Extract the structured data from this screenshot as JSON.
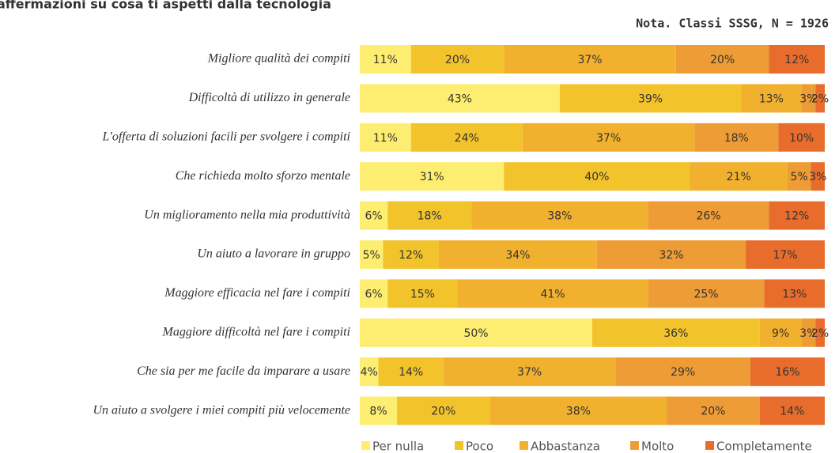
{
  "chart_data": {
    "type": "stacked-bar-horizontal",
    "title": "affermazioni su cosa ti aspetti dalla tecnologia",
    "subtitle": "Nota. Classi SSSG, N = 1926",
    "categories": [
      "Migliore qualità dei compiti",
      "Difficoltà di utilizzo in generale",
      "L'offerta di soluzioni facili per svolgere i compiti",
      "Che richieda molto sforzo mentale",
      "Un miglioramento nella mia produttività",
      "Un aiuto a lavorare in gruppo",
      "Maggiore efficacia nel fare i compiti",
      "Maggiore difficoltà nel fare i compiti",
      "Che sia per me facile da imparare a usare",
      "Un aiuto a svolgere i miei compiti più velocemente"
    ],
    "series": [
      {
        "name": "Per nulla",
        "color": "#fdee72",
        "values": [
          11,
          43,
          11,
          31,
          6,
          5,
          6,
          50,
          4,
          8
        ],
        "value_labels": [
          "11%",
          "43%",
          "11%",
          "31%",
          "6%",
          "5%",
          "6%",
          "50%",
          "4%",
          "8%"
        ]
      },
      {
        "name": "Poco",
        "color": "#f3c32c",
        "values": [
          20,
          39,
          24,
          40,
          18,
          12,
          15,
          36,
          14,
          20
        ],
        "value_labels": [
          "20%",
          "39%",
          "24%",
          "40%",
          "18%",
          "12%",
          "15%",
          "36%",
          "14%",
          "20%"
        ]
      },
      {
        "name": "Abbastanza",
        "color": "#f1b12f",
        "values": [
          37,
          13,
          37,
          21,
          38,
          34,
          41,
          9,
          37,
          38
        ],
        "value_labels": [
          "37%",
          "13%",
          "37%",
          "21%",
          "38%",
          "34%",
          "41%",
          "9%",
          "37%",
          "38%"
        ]
      },
      {
        "name": "Molto",
        "color": "#ee9c35",
        "values": [
          20,
          3,
          18,
          5,
          26,
          32,
          25,
          3,
          29,
          20
        ],
        "value_labels": [
          "20%",
          "3%",
          "18%",
          "5%",
          "26%",
          "32%",
          "25%",
          "3%",
          "29%",
          "20%"
        ]
      },
      {
        "name": "Completamente",
        "color": "#e86d2c",
        "values": [
          12,
          2,
          10,
          3,
          12,
          17,
          13,
          2,
          16,
          14
        ],
        "value_labels": [
          "12%",
          "2%",
          "10%",
          "3%",
          "12%",
          "17%",
          "13%",
          "2%",
          "16%",
          "14%"
        ]
      }
    ],
    "legend": "bottom"
  }
}
